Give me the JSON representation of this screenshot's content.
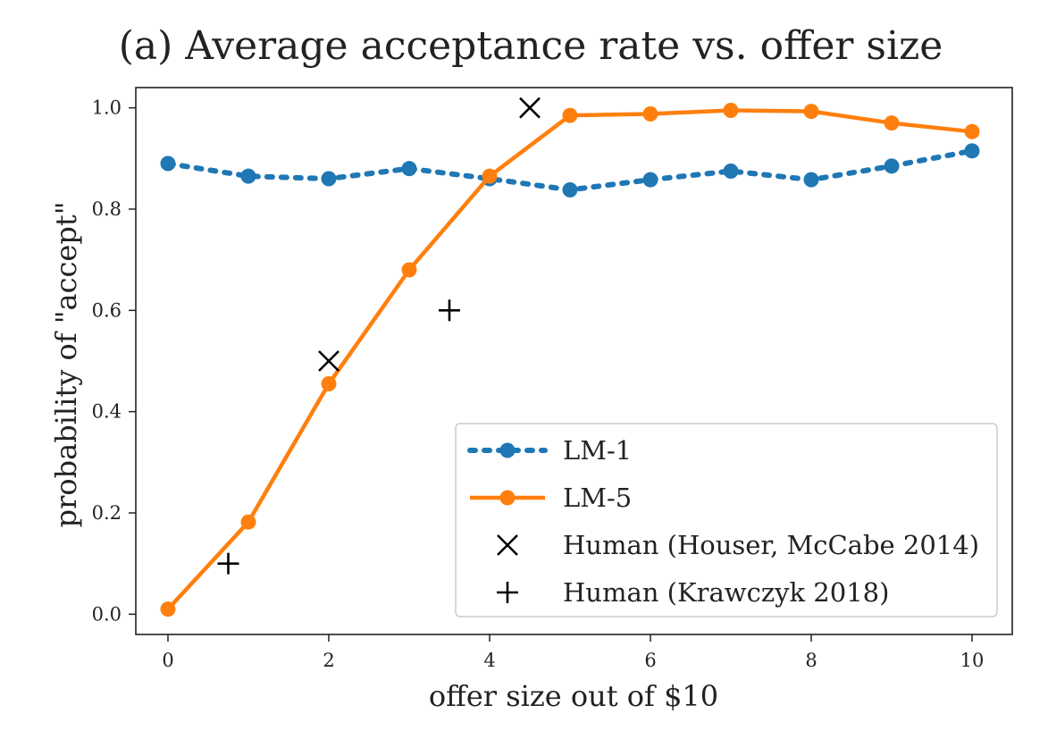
{
  "chart_data": {
    "type": "line",
    "title": "(a) Average acceptance rate vs. offer size",
    "xlabel": "offer size out of $10",
    "ylabel": "probability of  \"accept\"",
    "xlim": [
      -0.4,
      10.5
    ],
    "ylim": [
      -0.04,
      1.04
    ],
    "xticks": [
      0,
      2,
      4,
      6,
      8,
      10
    ],
    "xtick_labels": [
      "0",
      "2",
      "4",
      "6",
      "8",
      "10"
    ],
    "yticks": [
      0.0,
      0.2,
      0.4,
      0.6,
      0.8,
      1.0
    ],
    "ytick_labels": [
      "0.0",
      "0.2",
      "0.4",
      "0.6",
      "0.8",
      "1.0"
    ],
    "grid": false,
    "legend_position": "bottom-right",
    "series": [
      {
        "name": "LM-1",
        "style": "dotted-line-circle",
        "color": "#1f77b4",
        "x": [
          0,
          1,
          2,
          3,
          4,
          5,
          6,
          7,
          8,
          9,
          10
        ],
        "y": [
          0.89,
          0.865,
          0.86,
          0.88,
          0.86,
          0.838,
          0.858,
          0.875,
          0.858,
          0.885,
          0.915
        ]
      },
      {
        "name": "LM-5",
        "style": "solid-line-circle",
        "color": "#ff7f0e",
        "x": [
          0,
          1,
          2,
          3,
          4,
          5,
          6,
          7,
          8,
          9,
          10
        ],
        "y": [
          0.01,
          0.182,
          0.455,
          0.68,
          0.865,
          0.985,
          0.988,
          0.995,
          0.993,
          0.97,
          0.953
        ]
      },
      {
        "name": "Human (Houser, McCabe 2014)",
        "style": "x-marker",
        "color": "#000000",
        "x": [
          2,
          4.5
        ],
        "y": [
          0.5,
          1.0
        ]
      },
      {
        "name": "Human (Krawczyk 2018)",
        "style": "plus-marker",
        "color": "#000000",
        "x": [
          0.75,
          3.5
        ],
        "y": [
          0.1,
          0.6
        ]
      }
    ]
  }
}
